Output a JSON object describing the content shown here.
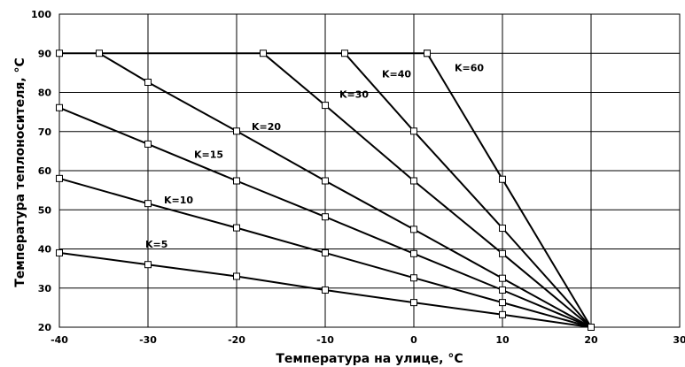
{
  "chart_data": {
    "type": "line",
    "xlabel": "Температура на улице, °С",
    "ylabel": "Температура теплоносителя, °С",
    "xlim": [
      -40,
      30
    ],
    "ylim": [
      20,
      100
    ],
    "xticks": [
      -40,
      -30,
      -20,
      -10,
      0,
      10,
      20,
      30
    ],
    "yticks": [
      20,
      30,
      40,
      50,
      60,
      70,
      80,
      90,
      100
    ],
    "grid": true,
    "series": [
      {
        "name": "K=5",
        "points": [
          [
            -40,
            39
          ],
          [
            -30,
            36
          ],
          [
            -20,
            33
          ],
          [
            -10,
            29.5
          ],
          [
            0,
            26.3
          ],
          [
            10,
            23.2
          ],
          [
            20,
            20
          ]
        ]
      },
      {
        "name": "K=10",
        "points": [
          [
            -40,
            58
          ],
          [
            -30,
            51.6
          ],
          [
            -20,
            45.4
          ],
          [
            -10,
            39
          ],
          [
            0,
            32.6
          ],
          [
            10,
            26.3
          ],
          [
            20,
            20
          ]
        ]
      },
      {
        "name": "K=15",
        "points": [
          [
            -40,
            76.1
          ],
          [
            -30,
            66.8
          ],
          [
            -20,
            57.4
          ],
          [
            -10,
            48.2
          ],
          [
            0,
            38.8
          ],
          [
            10,
            29.5
          ],
          [
            20,
            20
          ]
        ]
      },
      {
        "name": "K=20",
        "points": [
          [
            -35.5,
            90
          ],
          [
            -30,
            82.6
          ],
          [
            -20,
            70.1
          ],
          [
            -10,
            57.4
          ],
          [
            0,
            45
          ],
          [
            10,
            32.5
          ],
          [
            20,
            20
          ]
        ]
      },
      {
        "name": "K=30",
        "points": [
          [
            -17,
            90
          ],
          [
            -10,
            76.7
          ],
          [
            0,
            57.4
          ],
          [
            10,
            38.8
          ],
          [
            20,
            20
          ]
        ]
      },
      {
        "name": "K=40",
        "points": [
          [
            -7.8,
            90
          ],
          [
            0,
            70.1
          ],
          [
            10,
            45.3
          ],
          [
            20,
            20
          ]
        ]
      },
      {
        "name": "K=60",
        "points": [
          [
            1.5,
            90
          ],
          [
            10,
            57.8
          ],
          [
            20,
            20
          ]
        ]
      },
      {
        "name": "",
        "points": [
          [
            -40,
            90
          ],
          [
            1.5,
            90
          ]
        ]
      }
    ],
    "annotations": [
      {
        "text": "K=5",
        "x": -30.3,
        "y": 41.2
      },
      {
        "text": "K=10",
        "x": -28.2,
        "y": 52.5
      },
      {
        "text": "K=15",
        "x": -24.8,
        "y": 64.2
      },
      {
        "text": "K=20",
        "x": -18.3,
        "y": 71.3
      },
      {
        "text": "K=30",
        "x": -8.4,
        "y": 79.5
      },
      {
        "text": "K=40",
        "x": -3.6,
        "y": 84.8
      },
      {
        "text": "K=60",
        "x": 4.6,
        "y": 86.3
      }
    ]
  }
}
